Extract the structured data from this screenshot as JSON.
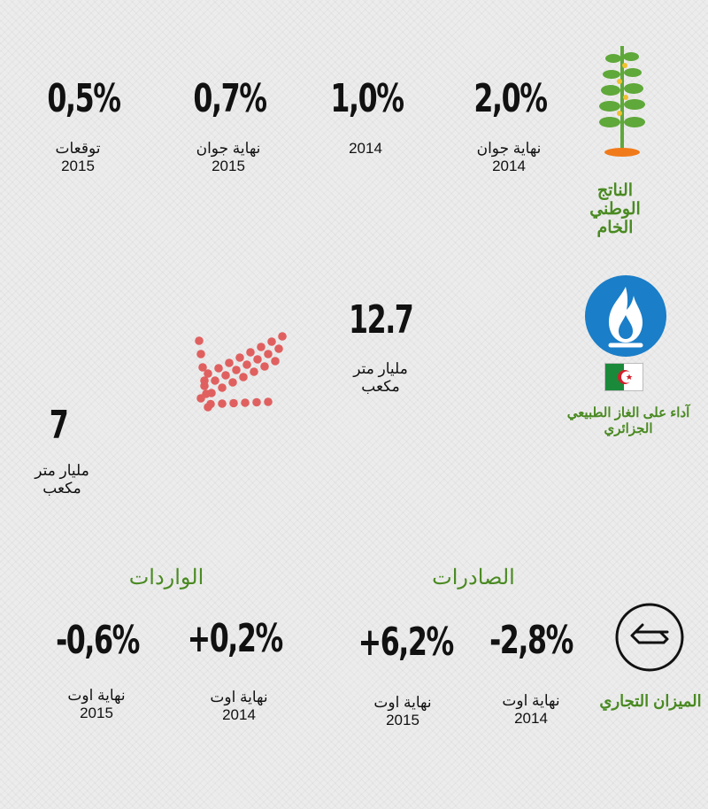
{
  "gdp": {
    "title_lines": [
      "الناتج",
      "الوطني",
      "الخام"
    ],
    "stats": [
      {
        "value": "2,0%",
        "label_lines": [
          "نهاية جوان",
          "2014"
        ]
      },
      {
        "value": "1,0%",
        "label_lines": [
          "2014"
        ]
      },
      {
        "value": "0,7%",
        "label_lines": [
          "نهاية جوان",
          "2015"
        ]
      },
      {
        "value": "0,5%",
        "label_lines": [
          "توقعات",
          "2015"
        ]
      }
    ]
  },
  "gas": {
    "title_lines": [
      "آداء على الغاز الطبيعي",
      "الجزائري"
    ],
    "value_high": "12.7",
    "value_high_label_lines": [
      "مليار متر",
      "مكعب"
    ],
    "value_low": "7",
    "value_low_label_lines": [
      "مليار متر",
      "مكعب"
    ]
  },
  "trade": {
    "title": "الميزان التجاري",
    "exports_heading": "الصادرات",
    "imports_heading": "الواردات",
    "exports": [
      {
        "value": "-2,8%",
        "label_lines": [
          "نهاية اوت",
          "2014"
        ]
      },
      {
        "value": "+6,2%",
        "label_lines": [
          "نهاية اوت",
          "2015"
        ]
      }
    ],
    "imports": [
      {
        "value": "+0,2%",
        "label_lines": [
          "نهاية اوت",
          "2014"
        ]
      },
      {
        "value": "-0,6%",
        "label_lines": [
          "نهاية اوت",
          "2015"
        ]
      }
    ]
  },
  "colors": {
    "accent_green": "#4a8a22",
    "gas_blue": "#1a7ec8",
    "dot_red": "#e06060"
  },
  "icons": [
    "plant-icon",
    "gas-flame-icon",
    "algeria-flag-icon",
    "exchange-arrows-icon",
    "decline-arrow-icon"
  ]
}
